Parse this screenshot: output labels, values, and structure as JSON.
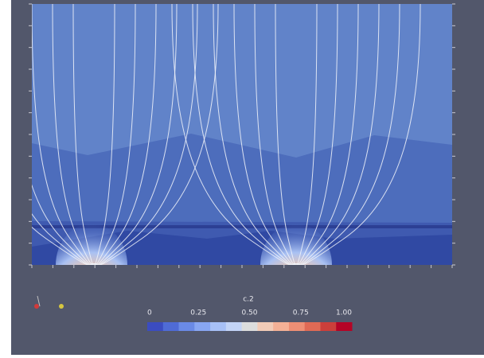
{
  "colorbar": {
    "title": "c.2",
    "labels": [
      "0",
      "0.25",
      "0.50",
      "0.75",
      "1.00"
    ],
    "colors": [
      "#3b4cc0",
      "#4f6bd6",
      "#6a8ae6",
      "#88a6f2",
      "#a7c0f7",
      "#c3d4f7",
      "#dcdddd",
      "#f2cbb7",
      "#f4b096",
      "#ee8f75",
      "#e06a55",
      "#cc3f3a",
      "#b40426"
    ]
  }
}
